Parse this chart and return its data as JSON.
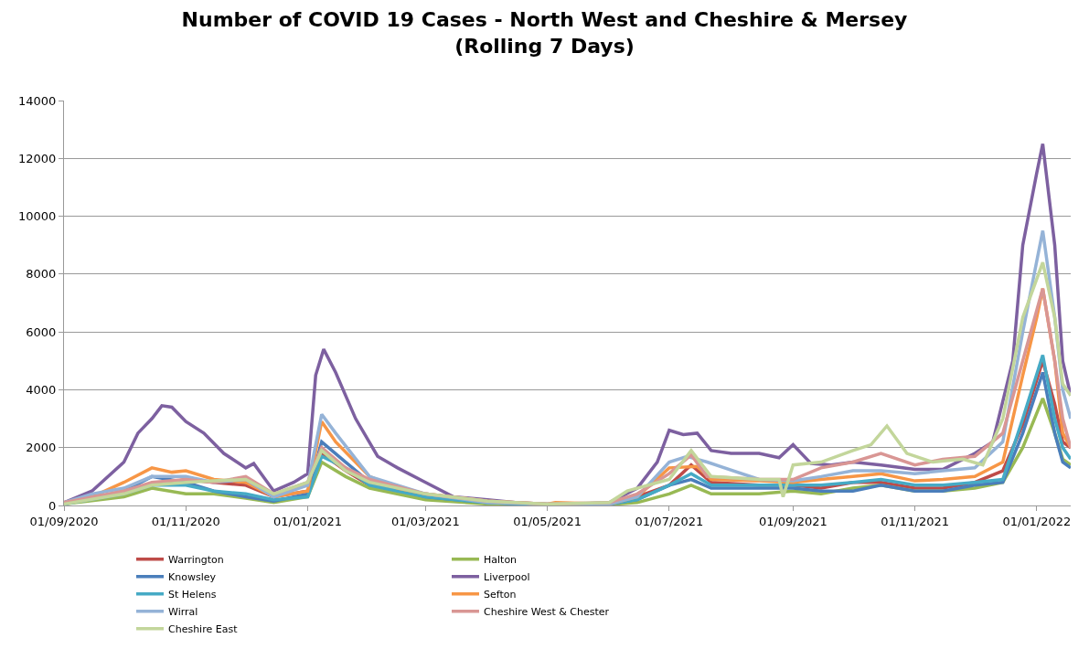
{
  "chart_data": {
    "type": "line",
    "title": "Number of COVID 19 Cases - North West and Cheshire & Mersey",
    "subtitle": "(Rolling 7 Days)",
    "xlim": [
      "2020-09-01",
      "2022-01-18"
    ],
    "xticks": [
      {
        "value": "2020-09-01",
        "label": "01/09/2020"
      },
      {
        "value": "2020-11-01",
        "label": "01/11/2020"
      },
      {
        "value": "2021-01-01",
        "label": "01/01/2021"
      },
      {
        "value": "2021-03-01",
        "label": "01/03/2021"
      },
      {
        "value": "2021-05-01",
        "label": "01/05/2021"
      },
      {
        "value": "2021-07-01",
        "label": "01/07/2021"
      },
      {
        "value": "2021-09-01",
        "label": "01/09/2021"
      },
      {
        "value": "2021-11-01",
        "label": "01/11/2021"
      },
      {
        "value": "2022-01-01",
        "label": "01/01/2022"
      }
    ],
    "ylim": [
      0,
      14000
    ],
    "yticks": [
      0,
      2000,
      4000,
      6000,
      8000,
      10000,
      12000,
      14000
    ],
    "grid": "y",
    "legend": "bottom",
    "marker": "none",
    "line_style": "solid",
    "series": [
      {
        "name": "Warrington",
        "color": "#be4b48",
        "x": [
          "2020-09-01",
          "2020-10-01",
          "2020-10-15",
          "2020-11-01",
          "2020-11-15",
          "2020-12-01",
          "2020-12-15",
          "2021-01-01",
          "2021-01-08",
          "2021-01-20",
          "2021-02-01",
          "2021-03-01",
          "2021-04-01",
          "2021-05-01",
          "2021-06-01",
          "2021-06-15",
          "2021-07-01",
          "2021-07-12",
          "2021-07-22",
          "2021-08-15",
          "2021-09-01",
          "2021-09-15",
          "2021-10-01",
          "2021-10-15",
          "2021-11-01",
          "2021-11-15",
          "2021-12-01",
          "2021-12-15",
          "2021-12-25",
          "2022-01-04",
          "2022-01-10",
          "2022-01-14",
          "2022-01-18"
        ],
        "values": [
          100,
          400,
          700,
          900,
          800,
          700,
          300,
          500,
          1800,
          1200,
          700,
          300,
          100,
          30,
          50,
          300,
          700,
          1400,
          800,
          700,
          700,
          600,
          800,
          800,
          600,
          600,
          800,
          1200,
          2800,
          5000,
          3500,
          2200,
          2000
        ]
      },
      {
        "name": "Halton",
        "color": "#98b954",
        "x": [
          "2020-09-01",
          "2020-10-01",
          "2020-10-15",
          "2020-11-01",
          "2020-11-15",
          "2020-12-01",
          "2020-12-15",
          "2021-01-01",
          "2021-01-08",
          "2021-01-20",
          "2021-02-01",
          "2021-03-01",
          "2021-04-01",
          "2021-05-01",
          "2021-06-01",
          "2021-06-15",
          "2021-07-01",
          "2021-07-12",
          "2021-07-22",
          "2021-08-15",
          "2021-09-01",
          "2021-09-15",
          "2021-10-01",
          "2021-10-15",
          "2021-11-01",
          "2021-11-15",
          "2021-12-01",
          "2021-12-15",
          "2021-12-25",
          "2022-01-04",
          "2022-01-10",
          "2022-01-14",
          "2022-01-18"
        ],
        "values": [
          50,
          300,
          600,
          400,
          400,
          250,
          100,
          300,
          1500,
          1000,
          600,
          200,
          50,
          20,
          30,
          100,
          400,
          700,
          400,
          400,
          500,
          400,
          600,
          700,
          500,
          500,
          600,
          800,
          2000,
          3700,
          2500,
          1600,
          1400
        ]
      },
      {
        "name": "Knowsley",
        "color": "#4a7ebb",
        "x": [
          "2020-09-01",
          "2020-10-01",
          "2020-10-15",
          "2020-11-01",
          "2020-11-15",
          "2020-12-01",
          "2020-12-15",
          "2021-01-01",
          "2021-01-08",
          "2021-01-20",
          "2021-02-01",
          "2021-03-01",
          "2021-04-01",
          "2021-05-01",
          "2021-06-01",
          "2021-06-15",
          "2021-07-01",
          "2021-07-12",
          "2021-07-22",
          "2021-08-15",
          "2021-09-01",
          "2021-09-15",
          "2021-10-01",
          "2021-10-15",
          "2021-11-01",
          "2021-11-15",
          "2021-12-01",
          "2021-12-15",
          "2021-12-25",
          "2022-01-04",
          "2022-01-10",
          "2022-01-14",
          "2022-01-18"
        ],
        "values": [
          50,
          500,
          1000,
          800,
          500,
          300,
          150,
          400,
          2200,
          1500,
          800,
          300,
          100,
          20,
          50,
          200,
          700,
          900,
          600,
          600,
          600,
          500,
          500,
          700,
          500,
          500,
          700,
          800,
          2500,
          4600,
          2500,
          1500,
          1300
        ]
      },
      {
        "name": "Liverpool",
        "color": "#7d60a0",
        "x": [
          "2020-09-01",
          "2020-09-15",
          "2020-10-01",
          "2020-10-08",
          "2020-10-15",
          "2020-10-20",
          "2020-10-25",
          "2020-11-01",
          "2020-11-10",
          "2020-11-20",
          "2020-12-01",
          "2020-12-05",
          "2020-12-15",
          "2020-12-25",
          "2021-01-01",
          "2021-01-05",
          "2021-01-09",
          "2021-01-15",
          "2021-01-25",
          "2021-02-05",
          "2021-02-15",
          "2021-03-01",
          "2021-03-15",
          "2021-04-01",
          "2021-04-15",
          "2021-05-01",
          "2021-05-15",
          "2021-06-01",
          "2021-06-15",
          "2021-06-25",
          "2021-07-01",
          "2021-07-08",
          "2021-07-15",
          "2021-07-22",
          "2021-08-01",
          "2021-08-15",
          "2021-08-25",
          "2021-09-01",
          "2021-09-10",
          "2021-09-20",
          "2021-10-01",
          "2021-10-15",
          "2021-11-01",
          "2021-11-15",
          "2021-12-01",
          "2021-12-10",
          "2021-12-20",
          "2021-12-25",
          "2022-01-01",
          "2022-01-04",
          "2022-01-10",
          "2022-01-14",
          "2022-01-18"
        ],
        "values": [
          100,
          500,
          1500,
          2500,
          3000,
          3450,
          3400,
          2900,
          2500,
          1800,
          1300,
          1450,
          500,
          800,
          1100,
          4500,
          5400,
          4600,
          3000,
          1700,
          1300,
          800,
          300,
          200,
          100,
          50,
          50,
          100,
          600,
          1500,
          2600,
          2450,
          2500,
          1900,
          1800,
          1800,
          1650,
          2100,
          1450,
          1400,
          1500,
          1400,
          1250,
          1250,
          1800,
          2200,
          5000,
          9000,
          11500,
          12500,
          9000,
          5000,
          3800
        ]
      },
      {
        "name": "St Helens",
        "color": "#46aac5",
        "x": [
          "2020-09-01",
          "2020-10-01",
          "2020-10-15",
          "2020-11-01",
          "2020-11-15",
          "2020-12-01",
          "2020-12-15",
          "2021-01-01",
          "2021-01-08",
          "2021-01-20",
          "2021-02-01",
          "2021-03-01",
          "2021-04-01",
          "2021-05-01",
          "2021-06-01",
          "2021-06-15",
          "2021-07-01",
          "2021-07-12",
          "2021-07-22",
          "2021-08-15",
          "2021-09-01",
          "2021-09-15",
          "2021-10-01",
          "2021-10-15",
          "2021-11-01",
          "2021-11-15",
          "2021-12-01",
          "2021-12-15",
          "2021-12-25",
          "2022-01-04",
          "2022-01-10",
          "2022-01-14",
          "2022-01-18"
        ],
        "values": [
          50,
          400,
          700,
          700,
          500,
          400,
          200,
          300,
          1700,
          1300,
          700,
          300,
          100,
          20,
          50,
          200,
          700,
          1100,
          700,
          700,
          700,
          700,
          800,
          900,
          700,
          700,
          800,
          900,
          3000,
          5200,
          3000,
          2000,
          1600
        ]
      },
      {
        "name": "Sefton",
        "color": "#f79646",
        "x": [
          "2020-09-01",
          "2020-09-15",
          "2020-10-01",
          "2020-10-15",
          "2020-10-25",
          "2020-11-01",
          "2020-11-15",
          "2020-12-01",
          "2020-12-15",
          "2021-01-01",
          "2021-01-08",
          "2021-01-15",
          "2021-02-01",
          "2021-02-15",
          "2021-03-01",
          "2021-04-01",
          "2021-05-01",
          "2021-05-05",
          "2021-06-01",
          "2021-06-15",
          "2021-07-01",
          "2021-07-15",
          "2021-07-22",
          "2021-08-15",
          "2021-09-01",
          "2021-09-15",
          "2021-10-01",
          "2021-10-15",
          "2021-11-01",
          "2021-11-15",
          "2021-12-01",
          "2021-12-15",
          "2021-12-25",
          "2022-01-01",
          "2022-01-04",
          "2022-01-10",
          "2022-01-14",
          "2022-01-18"
        ],
        "values": [
          100,
          300,
          800,
          1300,
          1150,
          1200,
          900,
          800,
          300,
          500,
          2900,
          2200,
          1000,
          600,
          400,
          150,
          50,
          100,
          50,
          300,
          1300,
          1350,
          900,
          850,
          800,
          900,
          1000,
          1100,
          850,
          900,
          1000,
          1500,
          4500,
          6500,
          7500,
          5000,
          2500,
          2000
        ]
      },
      {
        "name": "Wirral",
        "color": "#95b3d7",
        "x": [
          "2020-09-01",
          "2020-09-15",
          "2020-10-01",
          "2020-10-15",
          "2020-11-01",
          "2020-11-15",
          "2020-12-01",
          "2020-12-15",
          "2021-01-01",
          "2021-01-08",
          "2021-01-15",
          "2021-02-01",
          "2021-03-01",
          "2021-04-01",
          "2021-05-01",
          "2021-06-01",
          "2021-06-15",
          "2021-07-01",
          "2021-07-10",
          "2021-07-20",
          "2021-08-15",
          "2021-09-01",
          "2021-09-15",
          "2021-10-01",
          "2021-10-15",
          "2021-11-01",
          "2021-11-15",
          "2021-12-01",
          "2021-12-15",
          "2021-12-25",
          "2022-01-04",
          "2022-01-10",
          "2022-01-14",
          "2022-01-18"
        ],
        "values": [
          100,
          400,
          600,
          1000,
          1000,
          800,
          900,
          300,
          700,
          3150,
          2500,
          1000,
          400,
          100,
          50,
          50,
          300,
          1500,
          1700,
          1500,
          900,
          850,
          1000,
          1200,
          1200,
          1100,
          1200,
          1300,
          2200,
          6000,
          9500,
          6500,
          4000,
          3000
        ]
      },
      {
        "name": "Cheshire West & Chester",
        "color": "#d99694",
        "x": [
          "2020-09-01",
          "2020-10-01",
          "2020-10-15",
          "2020-11-01",
          "2020-11-15",
          "2020-12-01",
          "2020-12-15",
          "2021-01-01",
          "2021-01-08",
          "2021-01-20",
          "2021-02-01",
          "2021-03-01",
          "2021-04-01",
          "2021-05-01",
          "2021-06-01",
          "2021-06-15",
          "2021-07-01",
          "2021-07-12",
          "2021-07-20",
          "2021-08-15",
          "2021-09-01",
          "2021-09-15",
          "2021-10-01",
          "2021-10-15",
          "2021-11-01",
          "2021-11-15",
          "2021-12-01",
          "2021-12-15",
          "2021-12-25",
          "2022-01-04",
          "2022-01-10",
          "2022-01-14",
          "2022-01-18"
        ],
        "values": [
          100,
          500,
          800,
          900,
          800,
          1000,
          400,
          800,
          2000,
          1300,
          900,
          400,
          150,
          50,
          100,
          400,
          1100,
          1750,
          1000,
          900,
          900,
          1300,
          1500,
          1800,
          1400,
          1600,
          1700,
          2500,
          5000,
          7500,
          5000,
          3000,
          2000
        ]
      },
      {
        "name": "Cheshire East",
        "color": "#c3d69b",
        "x": [
          "2020-09-01",
          "2020-10-01",
          "2020-10-15",
          "2020-11-01",
          "2020-11-15",
          "2020-12-01",
          "2020-12-15",
          "2021-01-01",
          "2021-01-08",
          "2021-01-20",
          "2021-02-01",
          "2021-03-01",
          "2021-04-01",
          "2021-05-01",
          "2021-06-01",
          "2021-06-10",
          "2021-07-01",
          "2021-07-12",
          "2021-07-22",
          "2021-08-15",
          "2021-08-25",
          "2021-08-27",
          "2021-09-01",
          "2021-09-15",
          "2021-10-01",
          "2021-10-10",
          "2021-10-18",
          "2021-10-28",
          "2021-11-10",
          "2021-11-25",
          "2021-12-05",
          "2021-12-15",
          "2021-12-25",
          "2022-01-04",
          "2022-01-10",
          "2022-01-14",
          "2022-01-18"
        ],
        "values": [
          50,
          400,
          700,
          800,
          850,
          900,
          400,
          800,
          1900,
          1200,
          800,
          400,
          150,
          50,
          100,
          500,
          900,
          1900,
          1000,
          900,
          900,
          300,
          1400,
          1500,
          1900,
          2100,
          2750,
          1800,
          1500,
          1600,
          1400,
          3000,
          6500,
          8400,
          6500,
          4200,
          3800
        ]
      }
    ]
  }
}
